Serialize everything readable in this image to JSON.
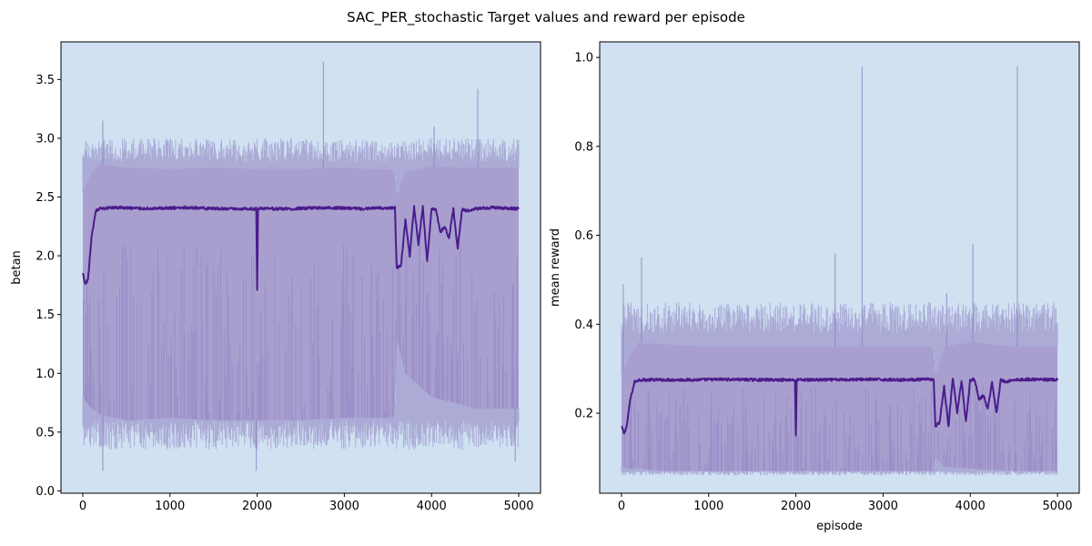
{
  "figure": {
    "title": "SAC_PER_stochastic Target values and reward per episode"
  },
  "colors": {
    "axes_bg": "#d0e1f2",
    "band_fill": "#a59bcc",
    "spike_line": "#8c7fc0",
    "mean_line": "#4b1c8c"
  },
  "chart_data": [
    {
      "type": "line",
      "subplot": "left",
      "xlabel": "",
      "ylabel": "betan",
      "xlim": [
        -250,
        5250
      ],
      "ylim": [
        -0.02,
        3.82
      ],
      "xticks": [
        0,
        1000,
        2000,
        3000,
        4000,
        5000
      ],
      "xtick_labels": [
        "0",
        "1000",
        "2000",
        "3000",
        "4000",
        "5000"
      ],
      "yticks": [
        0.0,
        0.5,
        1.0,
        1.5,
        2.0,
        2.5,
        3.0,
        3.5
      ],
      "ytick_labels": [
        "0.0",
        "0.5",
        "1.0",
        "1.5",
        "2.0",
        "2.5",
        "3.0",
        "3.5"
      ],
      "mean_series": {
        "x": [
          0,
          30,
          60,
          100,
          150,
          200,
          400,
          800,
          1200,
          1600,
          1990,
          2000,
          2010,
          2400,
          2800,
          3200,
          3580,
          3600,
          3650,
          3700,
          3750,
          3800,
          3850,
          3900,
          3950,
          4000,
          4050,
          4100,
          4150,
          4200,
          4250,
          4300,
          4350,
          4400,
          4500,
          4700,
          5000
        ],
        "y": [
          1.85,
          1.75,
          1.8,
          2.15,
          2.38,
          2.4,
          2.41,
          2.4,
          2.41,
          2.4,
          2.4,
          1.7,
          2.4,
          2.4,
          2.41,
          2.4,
          2.41,
          1.9,
          1.92,
          2.3,
          2.0,
          2.42,
          2.1,
          2.42,
          1.95,
          2.4,
          2.4,
          2.2,
          2.25,
          2.15,
          2.4,
          2.05,
          2.4,
          2.38,
          2.4,
          2.41,
          2.4
        ]
      },
      "upper_band": {
        "x": [
          0,
          100,
          200,
          500,
          1000,
          1500,
          2000,
          2500,
          3000,
          3580,
          3600,
          3700,
          4000,
          4500,
          5000
        ],
        "y": [
          2.55,
          2.7,
          2.78,
          2.75,
          2.74,
          2.75,
          2.74,
          2.74,
          2.75,
          2.73,
          2.5,
          2.72,
          2.76,
          2.75,
          2.75
        ]
      },
      "lower_band": {
        "x": [
          0,
          100,
          200,
          500,
          1000,
          1500,
          2000,
          2500,
          3000,
          3580,
          3600,
          3700,
          4000,
          4500,
          5000
        ],
        "y": [
          0.8,
          0.7,
          0.65,
          0.6,
          0.62,
          0.6,
          0.6,
          0.6,
          0.62,
          0.62,
          1.3,
          1.0,
          0.8,
          0.7,
          0.7
        ]
      },
      "upper_spike_range": [
        2.8,
        3.0
      ],
      "lower_spike_range": [
        0.35,
        0.6
      ],
      "big_spikes": [
        {
          "x": 2760,
          "y": 3.65
        },
        {
          "x": 4530,
          "y": 3.42
        },
        {
          "x": 230,
          "y": 3.15
        },
        {
          "x": 4030,
          "y": 3.1
        }
      ],
      "deep_dips": [
        {
          "x": 230,
          "y": 0.17
        },
        {
          "x": 1990,
          "y": 0.17
        },
        {
          "x": 4960,
          "y": 0.25
        }
      ]
    },
    {
      "type": "line",
      "subplot": "right",
      "xlabel": "episode",
      "ylabel": "mean reward",
      "xlim": [
        -250,
        5250
      ],
      "ylim": [
        0.02,
        1.035
      ],
      "xticks": [
        0,
        1000,
        2000,
        3000,
        4000,
        5000
      ],
      "xtick_labels": [
        "0",
        "1000",
        "2000",
        "3000",
        "4000",
        "5000"
      ],
      "yticks": [
        0.2,
        0.4,
        0.6,
        0.8,
        1.0
      ],
      "ytick_labels": [
        "0.2",
        "0.4",
        "0.6",
        "0.8",
        "1.0"
      ],
      "mean_series": {
        "x": [
          0,
          30,
          60,
          100,
          150,
          200,
          400,
          800,
          1200,
          1600,
          1990,
          2000,
          2010,
          2400,
          2800,
          3200,
          3580,
          3600,
          3650,
          3700,
          3750,
          3800,
          3850,
          3900,
          3950,
          4000,
          4050,
          4100,
          4150,
          4200,
          4250,
          4300,
          4350,
          4400,
          4500,
          4700,
          5000
        ],
        "y": [
          0.17,
          0.155,
          0.17,
          0.23,
          0.27,
          0.275,
          0.275,
          0.275,
          0.276,
          0.275,
          0.275,
          0.15,
          0.275,
          0.275,
          0.276,
          0.275,
          0.276,
          0.17,
          0.18,
          0.26,
          0.17,
          0.28,
          0.2,
          0.275,
          0.18,
          0.275,
          0.276,
          0.23,
          0.24,
          0.21,
          0.27,
          0.2,
          0.275,
          0.27,
          0.275,
          0.276,
          0.275
        ]
      },
      "upper_band": {
        "x": [
          0,
          100,
          200,
          500,
          1000,
          1500,
          2000,
          2500,
          3000,
          3580,
          3600,
          3700,
          4000,
          4500,
          5000
        ],
        "y": [
          0.28,
          0.33,
          0.36,
          0.355,
          0.35,
          0.35,
          0.35,
          0.35,
          0.35,
          0.35,
          0.28,
          0.35,
          0.36,
          0.35,
          0.35
        ]
      },
      "lower_band": {
        "x": [
          0,
          100,
          200,
          500,
          1000,
          1500,
          2000,
          2500,
          3000,
          3580,
          3600,
          3700,
          4000,
          4500,
          5000
        ],
        "y": [
          0.08,
          0.075,
          0.075,
          0.07,
          0.07,
          0.07,
          0.07,
          0.07,
          0.07,
          0.07,
          0.1,
          0.08,
          0.075,
          0.07,
          0.07
        ]
      },
      "upper_spike_range": [
        0.38,
        0.45
      ],
      "lower_spike_range": [
        0.06,
        0.07
      ],
      "big_spikes": [
        {
          "x": 2760,
          "y": 0.98
        },
        {
          "x": 4540,
          "y": 0.98
        },
        {
          "x": 4030,
          "y": 0.58
        },
        {
          "x": 2450,
          "y": 0.56
        },
        {
          "x": 230,
          "y": 0.55
        },
        {
          "x": 20,
          "y": 0.49
        },
        {
          "x": 3730,
          "y": 0.47
        }
      ],
      "deep_dips": []
    }
  ]
}
